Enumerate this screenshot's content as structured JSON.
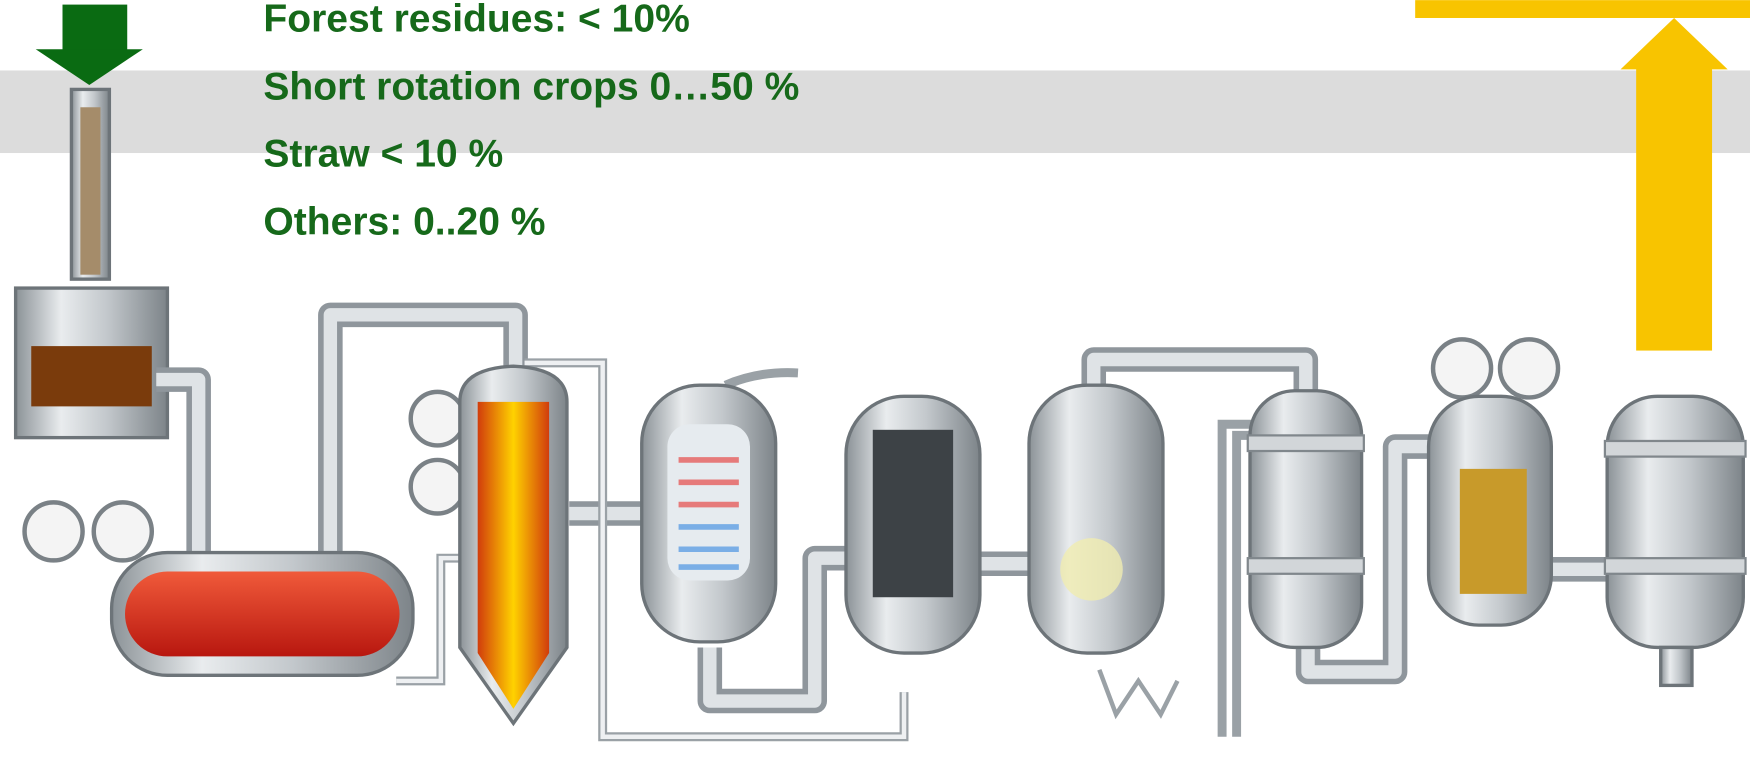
{
  "feedstock": [
    "Forest residues: < 10%",
    "Short rotation crops 0…50 %",
    "Straw < 10 %",
    "Others: 0..20 %"
  ]
}
